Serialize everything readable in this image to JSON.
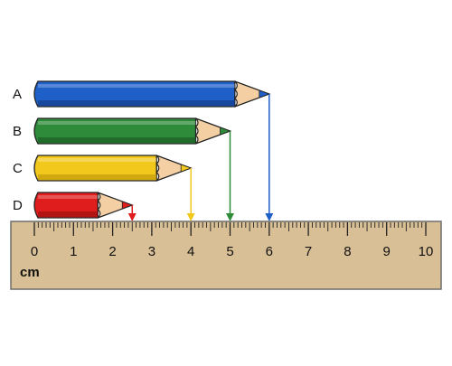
{
  "pencils": [
    {
      "label": "A",
      "tip_cm": 6,
      "color": "#1f5fc8",
      "dark": "#143f8a"
    },
    {
      "label": "B",
      "tip_cm": 5,
      "color": "#2e8b3a",
      "dark": "#1c5f25"
    },
    {
      "label": "C",
      "tip_cm": 4,
      "color": "#f2c81c",
      "dark": "#c39a0c"
    },
    {
      "label": "D",
      "tip_cm": 2.5,
      "color": "#e01d1d",
      "dark": "#9e1010"
    }
  ],
  "ruler": {
    "unit": "cm",
    "min": 0,
    "max": 10,
    "labels": [
      "0",
      "1",
      "2",
      "3",
      "4",
      "5",
      "6",
      "7",
      "8",
      "9",
      "10"
    ],
    "color": "#d9bf95"
  },
  "colors": {
    "wood": "#f3cfa3",
    "lead": "#333333"
  }
}
